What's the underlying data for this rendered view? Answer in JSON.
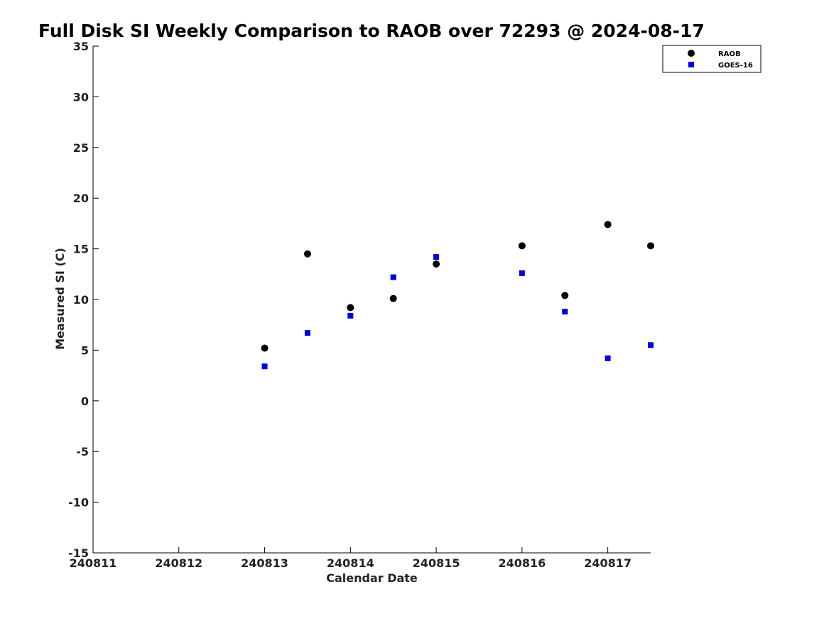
{
  "chart_data": {
    "type": "scatter",
    "title": "Full Disk SI Weekly Comparison to RAOB over 72293 @ 2024-08-17",
    "xlabel": "Calendar Date",
    "ylabel": "Measured SI (C)",
    "xlim": [
      240811,
      240817.5
    ],
    "ylim": [
      -15,
      35
    ],
    "xticks": [
      240811,
      240812,
      240813,
      240814,
      240815,
      240816,
      240817
    ],
    "xtick_labels": [
      "240811",
      "240812",
      "240813",
      "240814",
      "240815",
      "240816",
      "240817"
    ],
    "yticks": [
      -15,
      -10,
      -5,
      0,
      5,
      10,
      15,
      20,
      25,
      30,
      35
    ],
    "ytick_labels": [
      "-15",
      "-10",
      "-5",
      "0",
      "5",
      "10",
      "15",
      "20",
      "25",
      "30",
      "35"
    ],
    "grid": false,
    "legend_position": "top-right",
    "series": [
      {
        "name": "RAOB",
        "marker": "circle",
        "color": "#000000",
        "x": [
          240813,
          240813.5,
          240814,
          240814.5,
          240815,
          240816,
          240816.5,
          240817,
          240817.5
        ],
        "y": [
          5.2,
          14.5,
          9.2,
          10.1,
          13.5,
          15.3,
          10.4,
          17.4,
          15.3
        ]
      },
      {
        "name": "GOES-16",
        "marker": "square",
        "color": "#0000dd",
        "x": [
          240813,
          240813.5,
          240814,
          240814.5,
          240815,
          240816,
          240816.5,
          240817,
          240817.5
        ],
        "y": [
          3.4,
          6.7,
          8.4,
          12.2,
          14.2,
          12.6,
          8.8,
          4.2,
          5.5
        ]
      }
    ]
  }
}
